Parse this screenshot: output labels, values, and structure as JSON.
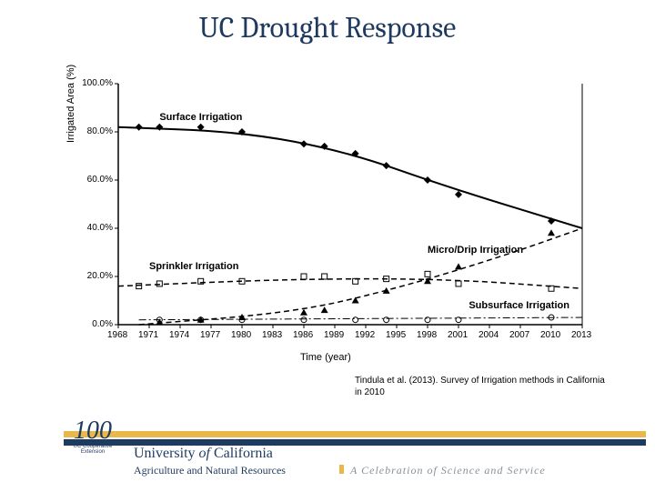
{
  "title": "UC Drought Response",
  "citation": "Tindula et al. (2013). Survey of Irrigation methods in California in 2010",
  "chart": {
    "type": "line",
    "xlabel": "Time (year)",
    "ylabel": "Irrigated Area (%)",
    "xlim": [
      1968,
      2013
    ],
    "ylim": [
      0,
      100
    ],
    "xtick_step": 3,
    "ytick_step": 20,
    "xticks": [
      1968,
      1971,
      1974,
      1977,
      1980,
      1983,
      1986,
      1989,
      1992,
      1995,
      1998,
      2001,
      2004,
      2007,
      2010,
      2013
    ],
    "yticks": [
      0,
      20,
      40,
      60,
      80,
      100
    ],
    "ytick_format": "percent1dp",
    "background_color": "#ffffff",
    "axis_color": "#000000",
    "tick_fontsize": 10,
    "label_fontsize": 11,
    "series": [
      {
        "name": "Surface Irrigation",
        "label_pos": {
          "x": 1972,
          "y": 86
        },
        "marker": "diamond",
        "line_style": "solid",
        "line_width": 2,
        "color": "#000000",
        "points": [
          {
            "x": 1970,
            "y": 82
          },
          {
            "x": 1972,
            "y": 82
          },
          {
            "x": 1976,
            "y": 82
          },
          {
            "x": 1980,
            "y": 80
          },
          {
            "x": 1986,
            "y": 75
          },
          {
            "x": 1988,
            "y": 74
          },
          {
            "x": 1991,
            "y": 71
          },
          {
            "x": 1994,
            "y": 66
          },
          {
            "x": 1998,
            "y": 60
          },
          {
            "x": 2001,
            "y": 54
          },
          {
            "x": 2010,
            "y": 43
          }
        ],
        "trend": [
          {
            "x": 1968,
            "y": 82
          },
          {
            "x": 1980,
            "y": 80
          },
          {
            "x": 1990,
            "y": 72
          },
          {
            "x": 2000,
            "y": 57
          },
          {
            "x": 2013,
            "y": 40
          }
        ]
      },
      {
        "name": "Sprinkler Irrigation",
        "label_pos": {
          "x": 1971,
          "y": 24
        },
        "marker": "square",
        "line_style": "dashed",
        "line_width": 1.5,
        "color": "#000000",
        "points": [
          {
            "x": 1970,
            "y": 16
          },
          {
            "x": 1972,
            "y": 17
          },
          {
            "x": 1976,
            "y": 18
          },
          {
            "x": 1980,
            "y": 18
          },
          {
            "x": 1986,
            "y": 20
          },
          {
            "x": 1988,
            "y": 20
          },
          {
            "x": 1991,
            "y": 18
          },
          {
            "x": 1994,
            "y": 19
          },
          {
            "x": 1998,
            "y": 21
          },
          {
            "x": 2001,
            "y": 17
          },
          {
            "x": 2010,
            "y": 15
          }
        ],
        "trend": [
          {
            "x": 1968,
            "y": 16
          },
          {
            "x": 1985,
            "y": 19
          },
          {
            "x": 2000,
            "y": 19
          },
          {
            "x": 2013,
            "y": 15
          }
        ]
      },
      {
        "name": "Micro/Drip Irrigation",
        "label_pos": {
          "x": 1998,
          "y": 31
        },
        "marker": "triangle",
        "line_style": "dashed",
        "line_width": 1.5,
        "color": "#000000",
        "points": [
          {
            "x": 1972,
            "y": 1
          },
          {
            "x": 1976,
            "y": 2
          },
          {
            "x": 1980,
            "y": 3
          },
          {
            "x": 1986,
            "y": 5
          },
          {
            "x": 1988,
            "y": 6
          },
          {
            "x": 1991,
            "y": 10
          },
          {
            "x": 1994,
            "y": 14
          },
          {
            "x": 1998,
            "y": 18
          },
          {
            "x": 2001,
            "y": 24
          },
          {
            "x": 2010,
            "y": 38
          }
        ],
        "trend": [
          {
            "x": 1970,
            "y": 0
          },
          {
            "x": 1985,
            "y": 5
          },
          {
            "x": 1995,
            "y": 15
          },
          {
            "x": 2005,
            "y": 28
          },
          {
            "x": 2013,
            "y": 40
          }
        ]
      },
      {
        "name": "Subsurface Irrigation",
        "label_pos": {
          "x": 2002,
          "y": 8
        },
        "marker": "circle",
        "line_style": "dash-dot",
        "line_width": 1,
        "color": "#000000",
        "points": [
          {
            "x": 1972,
            "y": 2
          },
          {
            "x": 1976,
            "y": 2
          },
          {
            "x": 1980,
            "y": 2
          },
          {
            "x": 1986,
            "y": 2
          },
          {
            "x": 1991,
            "y": 2
          },
          {
            "x": 1994,
            "y": 2
          },
          {
            "x": 1998,
            "y": 2
          },
          {
            "x": 2001,
            "y": 2
          },
          {
            "x": 2010,
            "y": 3
          }
        ],
        "trend": [
          {
            "x": 1970,
            "y": 2
          },
          {
            "x": 2013,
            "y": 3
          }
        ]
      }
    ]
  },
  "footer": {
    "logo_num": "100",
    "logo_coop": "UC Cooperative Extension",
    "univ": "University of California",
    "dept": "Agriculture and Natural Resources",
    "tagline": "A Celebration of Science and Service",
    "bar_top_color": "#e8b84a",
    "bar_bot_color": "#1f3a5f"
  }
}
